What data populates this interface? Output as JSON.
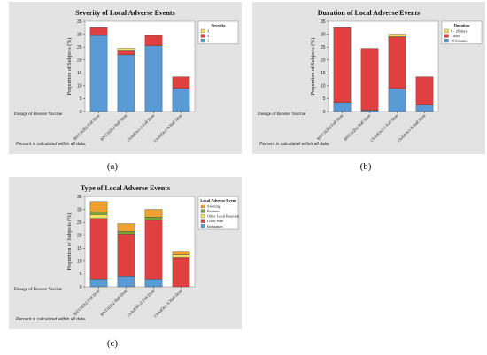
{
  "panels": [
    {
      "caption": "(a)",
      "note": "Percent is calculated within all data.",
      "chart": {
        "type": "bar",
        "stacked": true,
        "title": "Severity of Local Adverse Events",
        "ylabel": "Proportion of Subjects (%)",
        "xlabel": "Dosage of Booster Vaccine",
        "ylim": [
          0,
          35
        ],
        "yticks": [
          0,
          5,
          10,
          15,
          20,
          25,
          30,
          35
        ],
        "categories": [
          "BNT162b2 Full Dose",
          "BNT162b2 Half Dose",
          "ChAdOx1-S Full Dose",
          "ChAdOx1-S Half Dose"
        ],
        "legend_title": "Severity",
        "legend_position": "top-right",
        "series": [
          {
            "name": "1",
            "color": "#5b9bd5",
            "values": [
              29.5,
              22,
              25.5,
              9
            ]
          },
          {
            "name": "2",
            "color": "#e04040",
            "values": [
              3,
              1.5,
              4,
              4.5
            ]
          },
          {
            "name": "3",
            "color": "#f5e060",
            "values": [
              0,
              1,
              0,
              0
            ]
          }
        ]
      }
    },
    {
      "caption": "(b)",
      "note": "Percent is calculated within all data.",
      "chart": {
        "type": "bar",
        "stacked": true,
        "title": "Duration of Local Adverse Events",
        "ylabel": "Proportion of Subjects (%)",
        "xlabel": "Dosage of Booster Vaccine",
        "ylim": [
          0,
          35
        ],
        "yticks": [
          0,
          5,
          10,
          15,
          20,
          25,
          30,
          35
        ],
        "categories": [
          "BNT162b2 Full Dose",
          "BNT162b2 Half Dose",
          "ChAdOx1-S Full Dose",
          "ChAdOx1-S Half Dose"
        ],
        "legend_title": "Duration",
        "legend_position": "top-right",
        "series": [
          {
            "name": "10 minutes",
            "color": "#5b9bd5",
            "values": [
              3.5,
              0.5,
              9,
              2.5
            ]
          },
          {
            "name": "7 days",
            "color": "#e04040",
            "values": [
              29,
              24,
              20,
              11
            ]
          },
          {
            "name": "8 - 28 days",
            "color": "#f5e060",
            "values": [
              0,
              0,
              1,
              0
            ]
          }
        ]
      }
    },
    {
      "caption": "(c)",
      "note": "Percent is calculated within all data.",
      "chart": {
        "type": "bar",
        "stacked": true,
        "title": "Type of Local Adverse Events",
        "ylabel": "Proportion of Subjects (%)",
        "xlabel": "Dosage of Booster Vaccine",
        "ylim": [
          0,
          35
        ],
        "yticks": [
          0,
          5,
          10,
          15,
          20,
          25,
          30,
          35
        ],
        "categories": [
          "BNT162b2 Full Dose",
          "BNT162b2 Half Dose",
          "ChAdOx1-S Full Dose",
          "ChAdOx1-S Half Dose"
        ],
        "legend_title": "Local Adverse Event",
        "legend_position": "top-right",
        "series": [
          {
            "name": "Induration",
            "color": "#5b9bd5",
            "values": [
              3,
              4,
              3,
              0
            ]
          },
          {
            "name": "Local Pain",
            "color": "#e04040",
            "values": [
              23.5,
              16.5,
              23,
              11.5
            ]
          },
          {
            "name": "Other Local Reaction",
            "color": "#f5e060",
            "values": [
              1.5,
              0,
              0,
              1
            ]
          },
          {
            "name": "Redness",
            "color": "#7aa33a",
            "values": [
              1,
              1,
              1,
              0
            ]
          },
          {
            "name": "Swelling",
            "color": "#f0a030",
            "values": [
              4,
              3,
              3,
              1
            ]
          }
        ]
      }
    }
  ]
}
